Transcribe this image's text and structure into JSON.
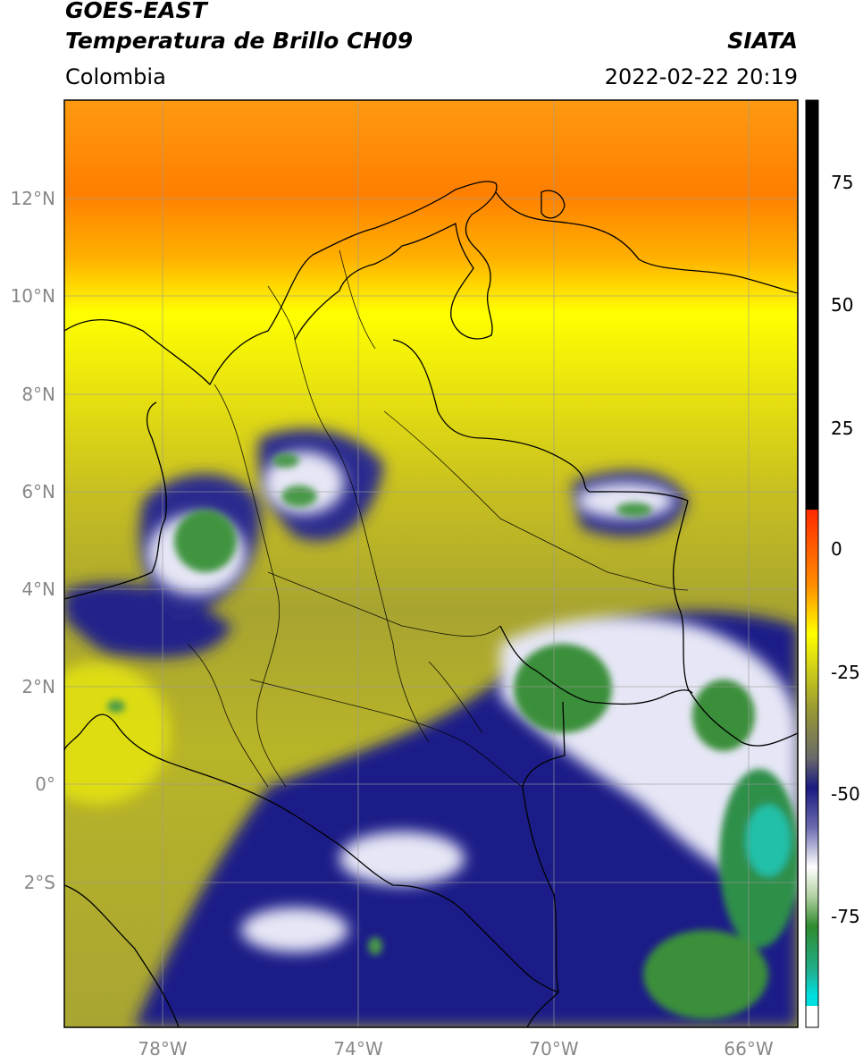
{
  "header": {
    "satellite": "GOES-EAST",
    "product": "Temperatura de Brillo CH09",
    "region": "Colombia",
    "organization": "SIATA",
    "datetime": "2022-02-22 20:19"
  },
  "map": {
    "lat_labels": [
      "12°N",
      "10°N",
      "8°N",
      "6°N",
      "4°N",
      "2°N",
      "0°",
      "2°S"
    ],
    "lon_labels": [
      "78°W",
      "74°W",
      "70°W",
      "66°W"
    ],
    "grid": true
  },
  "colorbar": {
    "ticks": [
      "75",
      "50",
      "25",
      "0",
      "-25",
      "-50",
      "-75"
    ],
    "colors": {
      "black": "#000000",
      "red": "#ff2a00",
      "orange": "#ff8c00",
      "yellow": "#ffff00",
      "olive": "#9a9a33",
      "gray": "#6a6a6a",
      "navy": "#1a1a80",
      "white": "#ffffff",
      "green": "#2e8b2e",
      "cyan": "#00e0e0"
    }
  }
}
